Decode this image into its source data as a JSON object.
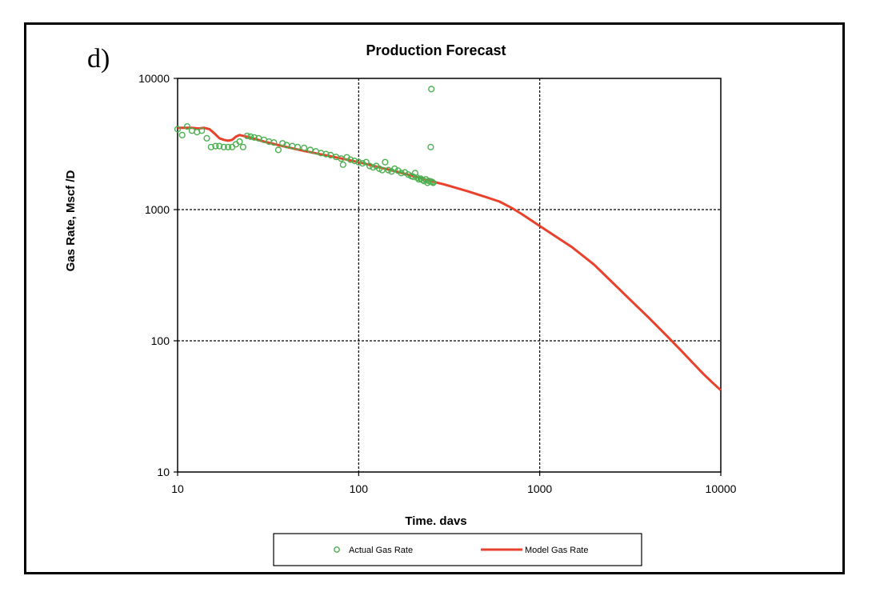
{
  "panel_label": "d)",
  "chart_data": {
    "type": "scatter",
    "title": "Production Forecast",
    "xlabel": "Time. davs",
    "ylabel": "Gas Rate, Mscf /D",
    "x_scale": "log",
    "y_scale": "log",
    "xlim": [
      10,
      10000
    ],
    "ylim": [
      10,
      10000
    ],
    "x_ticks": [
      10,
      100,
      1000,
      10000
    ],
    "y_ticks": [
      10,
      100,
      1000,
      10000
    ],
    "x_tick_labels": [
      "10",
      "100",
      "1000",
      "10000"
    ],
    "y_tick_labels": [
      "10",
      "100",
      "1000",
      "10000"
    ],
    "grid": true,
    "legend_position": "bottom",
    "series": [
      {
        "name": "Actual Gas Rate",
        "kind": "markers",
        "color": "#4caf50",
        "x": [
          10,
          10.6,
          11.3,
          12.0,
          12.8,
          13.6,
          14.5,
          15.3,
          16.2,
          17.0,
          18.0,
          19.0,
          20.0,
          21.0,
          22.0,
          23.0,
          24.2,
          25.3,
          26.5,
          28,
          30,
          32,
          34,
          36,
          38,
          40,
          43,
          46,
          50,
          54,
          58,
          62,
          66,
          70,
          75,
          80,
          82,
          86,
          90,
          95,
          100,
          105,
          110,
          115,
          120,
          125,
          130,
          135,
          140,
          146,
          152,
          158,
          165,
          172,
          180,
          188,
          195,
          200,
          205,
          210,
          215,
          220,
          225,
          230,
          235,
          240,
          245,
          250,
          255,
          258,
          252,
          250
        ],
        "y": [
          4100,
          3700,
          4300,
          4000,
          3900,
          4000,
          3500,
          3000,
          3050,
          3050,
          3000,
          3000,
          3000,
          3150,
          3300,
          3000,
          3650,
          3600,
          3550,
          3500,
          3400,
          3300,
          3250,
          2850,
          3200,
          3100,
          3050,
          3000,
          2950,
          2850,
          2780,
          2700,
          2650,
          2600,
          2520,
          2450,
          2200,
          2500,
          2400,
          2350,
          2300,
          2250,
          2300,
          2150,
          2100,
          2150,
          2050,
          2000,
          2300,
          2000,
          1950,
          2050,
          1980,
          1900,
          1920,
          1850,
          1800,
          1780,
          1900,
          1750,
          1700,
          1720,
          1680,
          1650,
          1700,
          1600,
          1650,
          1640,
          1620,
          1600,
          8300,
          3000
        ]
      },
      {
        "name": "Model Gas Rate",
        "kind": "line",
        "color": "#e8412c",
        "x": [
          10,
          11,
          12,
          13,
          14,
          15,
          16,
          17,
          18,
          19,
          20,
          21,
          22,
          23,
          24,
          25,
          30,
          40,
          50,
          70,
          100,
          150,
          200,
          250,
          300,
          400,
          500,
          600,
          700,
          800,
          1000,
          1500,
          2000,
          3000,
          4000,
          5000,
          6000,
          7000,
          8000,
          9000,
          10000
        ],
        "y": [
          4200,
          4200,
          4200,
          4150,
          4200,
          4100,
          3800,
          3500,
          3400,
          3350,
          3400,
          3600,
          3700,
          3650,
          3600,
          3550,
          3300,
          3000,
          2800,
          2550,
          2300,
          2000,
          1800,
          1650,
          1550,
          1380,
          1250,
          1150,
          1030,
          920,
          750,
          520,
          380,
          220,
          150,
          110,
          85,
          68,
          56,
          48,
          42
        ]
      }
    ]
  }
}
